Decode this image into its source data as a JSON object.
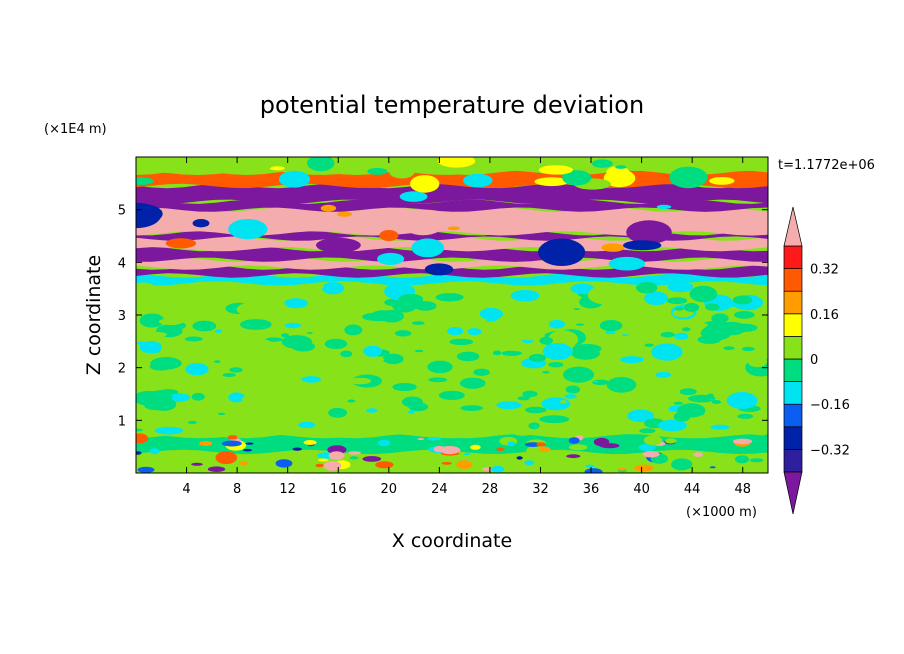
{
  "chart_data": {
    "type": "heatmap",
    "title": "potential temperature deviation",
    "xlabel": "X coordinate",
    "ylabel": "Z coordinate",
    "x_unit": "(×1000 m)",
    "y_unit": "(×1E4 m)",
    "time_label": "t=1.1772e+06",
    "xlim": [
      0,
      50
    ],
    "ylim": [
      0,
      6
    ],
    "x_ticks": [
      4,
      8,
      12,
      16,
      20,
      24,
      28,
      32,
      36,
      40,
      44,
      48
    ],
    "y_ticks": [
      1,
      2,
      3,
      4,
      5
    ],
    "colorbar": {
      "levels": [
        -0.4,
        -0.32,
        -0.24,
        -0.16,
        -0.08,
        0,
        0.08,
        0.16,
        0.24,
        0.32,
        0.4
      ],
      "tick_values": [
        0.32,
        0.16,
        0,
        -0.16,
        -0.32
      ],
      "tick_labels": [
        "0.32",
        "0.16",
        "0",
        "−0.16",
        "−0.32"
      ],
      "colors_bottom_to_top": [
        "#7b189e",
        "#2e1f9e",
        "#0022a8",
        "#0a5ef0",
        "#00e4f2",
        "#00dd80",
        "#88e21a",
        "#ffff00",
        "#ff9d00",
        "#ff5a00",
        "#ff1a1a",
        "#f4acac"
      ]
    },
    "bands": [
      {
        "z": [
          0.0,
          0.4
        ],
        "level": 0.0
      },
      {
        "z": [
          0.4,
          0.7
        ],
        "level": -0.05
      },
      {
        "z": [
          0.7,
          3.6
        ],
        "level": 0.05
      },
      {
        "z": [
          3.6,
          3.75
        ],
        "level": -0.1
      },
      {
        "z": [
          3.75,
          3.9
        ],
        "level": -0.45
      },
      {
        "z": [
          3.9,
          4.05
        ],
        "level": 0.45
      },
      {
        "z": [
          4.05,
          4.25
        ],
        "level": -0.45
      },
      {
        "z": [
          4.25,
          4.45
        ],
        "level": 0.45
      },
      {
        "z": [
          4.45,
          4.55
        ],
        "level": -0.45
      },
      {
        "z": [
          4.55,
          5.0
        ],
        "level": 0.45
      },
      {
        "z": [
          5.0,
          5.15
        ],
        "level": -0.45
      },
      {
        "z": [
          5.15,
          5.45
        ],
        "level": -0.45
      },
      {
        "z": [
          5.45,
          5.7
        ],
        "level": 0.3
      },
      {
        "z": [
          5.7,
          6.0
        ],
        "level": 0.05
      }
    ]
  }
}
